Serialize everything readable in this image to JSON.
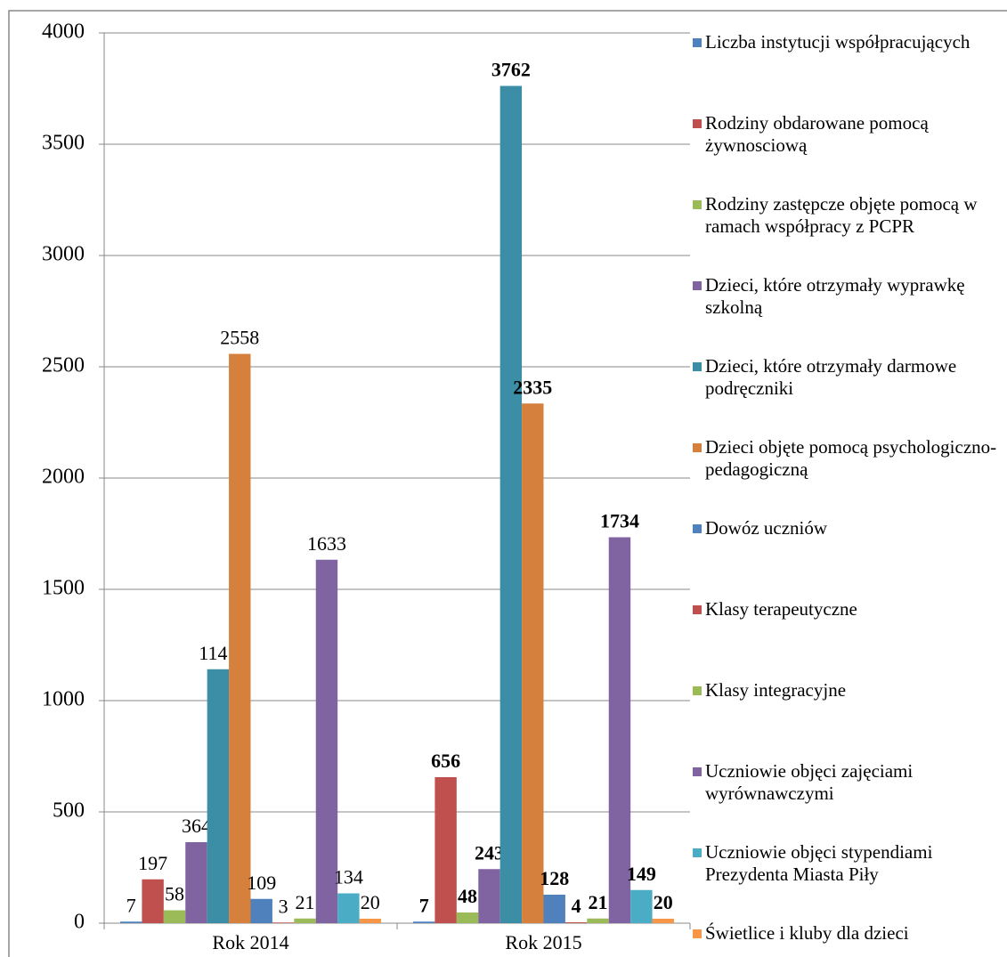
{
  "chart_data": {
    "type": "bar",
    "categories": [
      "Rok 2014",
      "Rok 2015"
    ],
    "ylim": [
      0,
      4000
    ],
    "yticks": [
      0,
      500,
      1000,
      1500,
      2000,
      2500,
      3000,
      3500,
      4000
    ],
    "grid": true,
    "legend": "right",
    "series": [
      {
        "name": "Liczba instytucji współpracujących",
        "color": "#4f81bd",
        "values": [
          7,
          7
        ]
      },
      {
        "name": "Rodziny obdarowane pomocą żywnosciową",
        "color": "#c0504d",
        "values": [
          197,
          656
        ]
      },
      {
        "name": "Rodziny zastępcze objęte pomocą w ramach współpracy z PCPR",
        "color": "#9bbb59",
        "values": [
          58,
          48
        ]
      },
      {
        "name": "Dzieci, które otrzymały wyprawkę szkolną",
        "color": "#8064a2",
        "values": [
          364,
          243
        ]
      },
      {
        "name": "Dzieci, które otrzymały darmowe podręczniki",
        "color": "#3b8ea5",
        "values": [
          1141,
          3762
        ]
      },
      {
        "name": "Dzieci objęte pomocą psychologiczno-pedagogiczną",
        "color": "#d5803c",
        "values": [
          2558,
          2335
        ]
      },
      {
        "name": "Dowóz uczniów",
        "color": "#4f81bd",
        "values": [
          109,
          128
        ]
      },
      {
        "name": "Klasy terapeutyczne",
        "color": "#c0504d",
        "values": [
          3,
          4
        ]
      },
      {
        "name": "Klasy integracyjne",
        "color": "#9bbb59",
        "values": [
          21,
          21
        ]
      },
      {
        "name": "Uczniowie objęci zajęciami wyrównawczymi",
        "color": "#8064a2",
        "values": [
          1633,
          1734
        ]
      },
      {
        "name": "Uczniowie objęci stypendiami Prezydenta Miasta Piły",
        "color": "#4bacc6",
        "values": [
          134,
          149
        ]
      },
      {
        "name": "Świetlice i kluby dla dzieci",
        "color": "#f79646",
        "values": [
          20,
          20
        ]
      }
    ]
  }
}
